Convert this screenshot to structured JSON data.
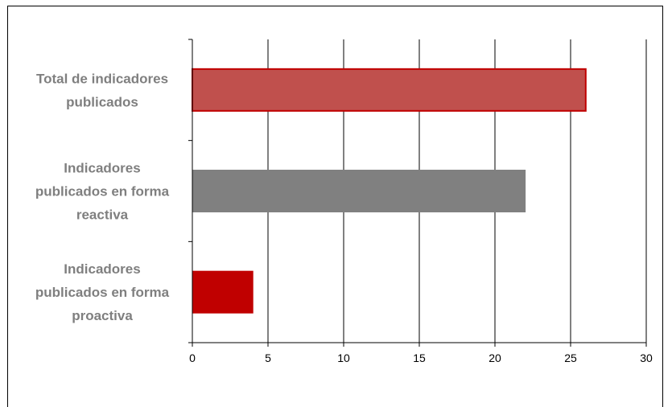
{
  "chart_data": {
    "type": "bar",
    "orientation": "horizontal",
    "categories": [
      "Total de indicadores publicados",
      "Indicadores publicados en forma reactiva",
      "Indicadores publicados en forma proactiva"
    ],
    "category_lines": [
      [
        "Total de indicadores",
        "publicados"
      ],
      [
        "Indicadores",
        "publicados en forma",
        "reactiva"
      ],
      [
        "Indicadores",
        "publicados en forma",
        "proactiva"
      ]
    ],
    "values": [
      26,
      22,
      4
    ],
    "colors": [
      "#c0504d",
      "#808080",
      "#c00000"
    ],
    "xlim": [
      0,
      30
    ],
    "xticks": [
      0,
      5,
      10,
      15,
      20,
      25,
      30
    ],
    "grid": true,
    "title": "",
    "xlabel": "",
    "ylabel": ""
  }
}
